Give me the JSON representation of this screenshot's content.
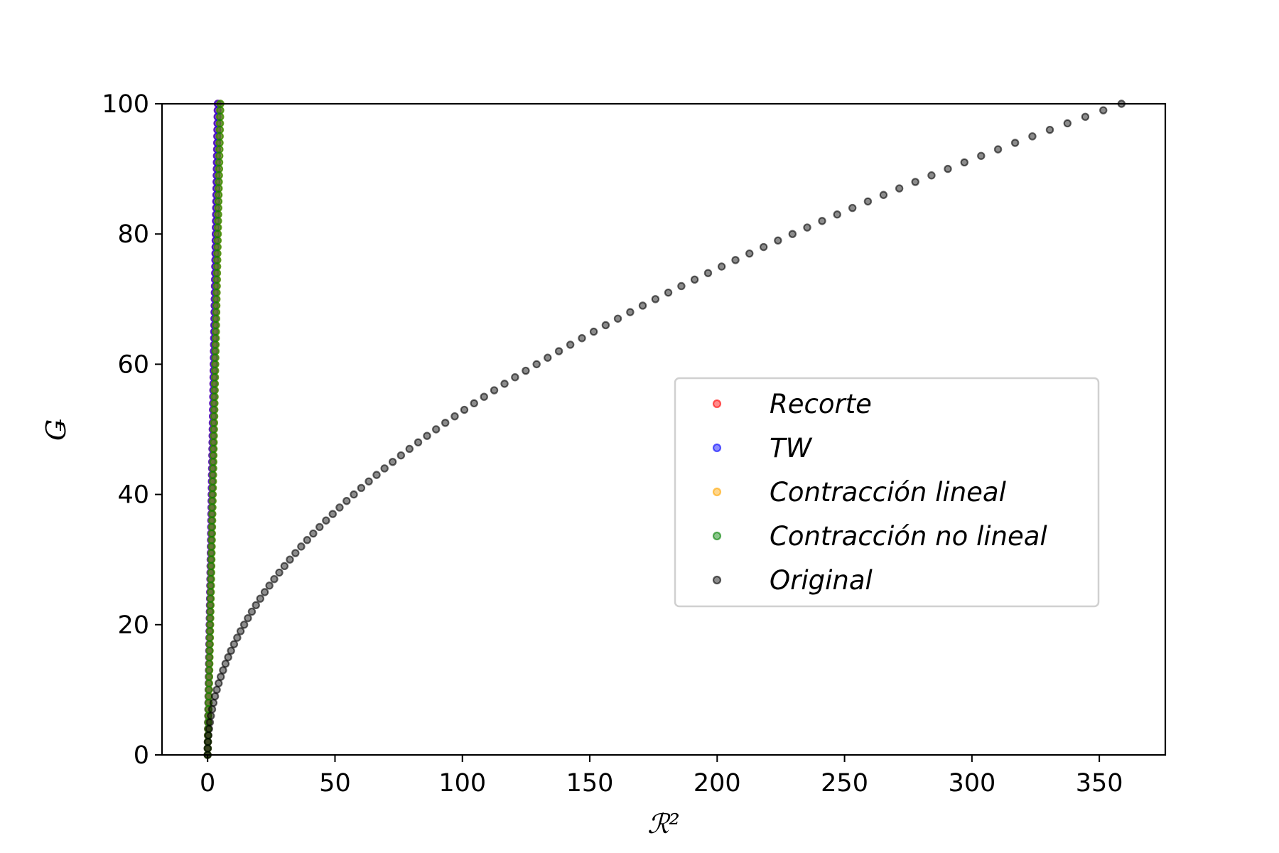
{
  "chart_data": {
    "type": "scatter",
    "title": "",
    "xlabel": "ℛ²",
    "ylabel": "Ǥ",
    "xlim": [
      -17.9,
      375.9
    ],
    "ylim": [
      0,
      100
    ],
    "xticks": [
      0,
      50,
      100,
      150,
      200,
      250,
      300,
      350
    ],
    "yticks": [
      0,
      20,
      40,
      60,
      80,
      100
    ],
    "grid": false,
    "legend_position": "center-right",
    "series": [
      {
        "name": "Recorte",
        "color": "#ff0000",
        "model": "y = 25*x"
      },
      {
        "name": "TW",
        "color": "#0000ff",
        "model": "y = 25*x"
      },
      {
        "name": "Contracción lineal",
        "color": "#ffa500",
        "model": "y = 20*x"
      },
      {
        "name": "Contracción no lineal",
        "color": "#008000",
        "model": "y = 20*x"
      },
      {
        "name": "Original",
        "color": "#000000",
        "model": "y = 5.28*sqrt(x)"
      }
    ]
  }
}
